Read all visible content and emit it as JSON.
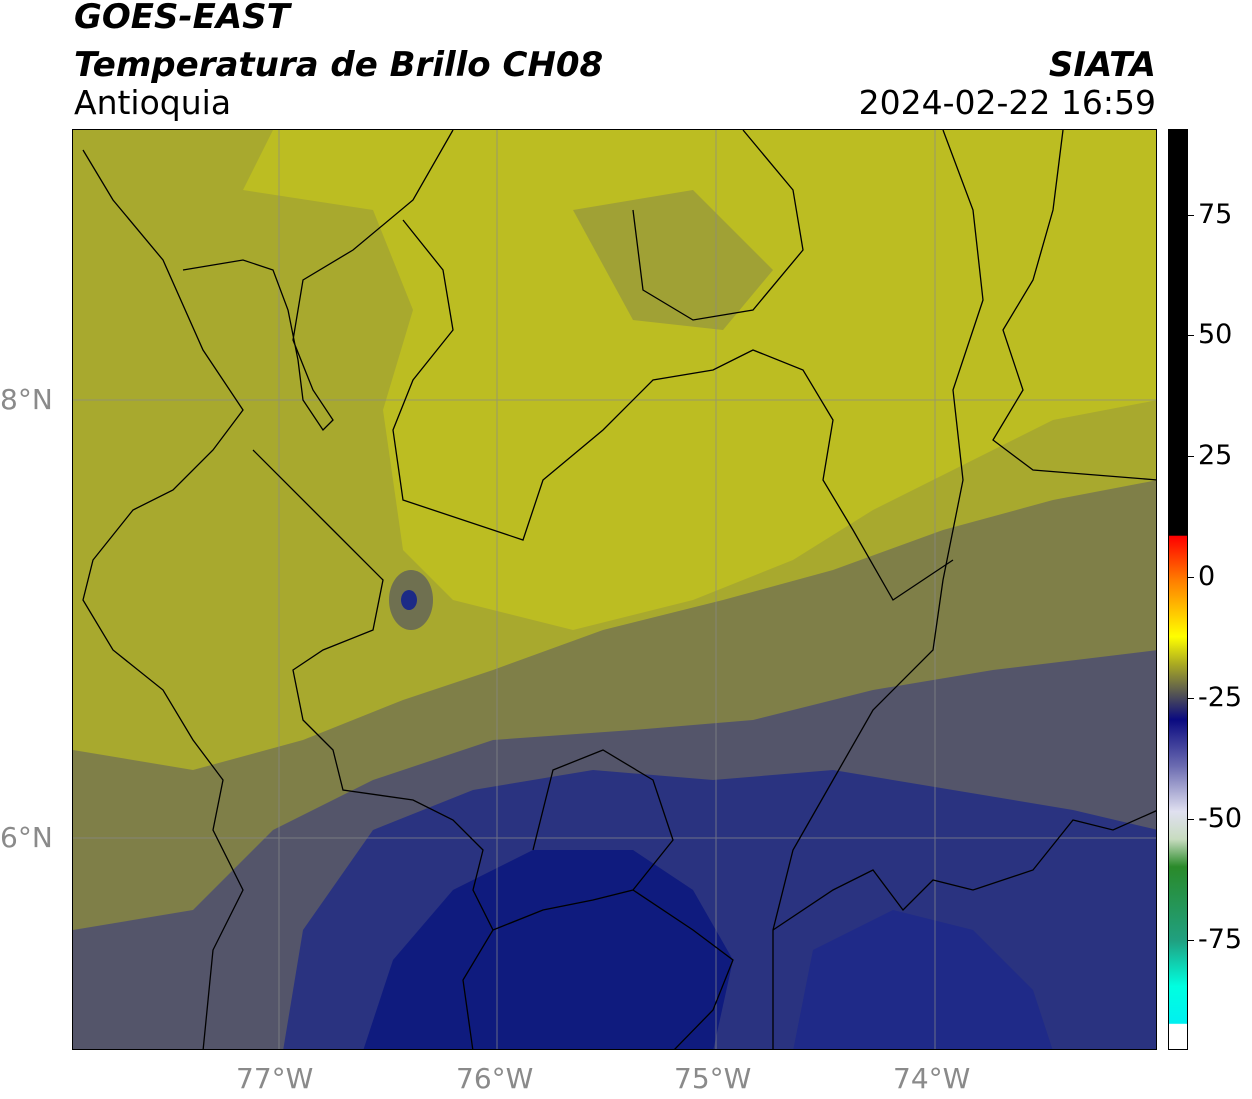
{
  "header": {
    "title": "GOES-EAST",
    "product": "Temperatura de Brillo CH08",
    "agency": "SIATA",
    "region": "Antioquia",
    "datetime": "2024-02-22 16:59"
  },
  "map": {
    "lat_labels": [
      "8°N",
      "6°N"
    ],
    "lon_labels": [
      "77°W",
      "76°W",
      "75°W",
      "74°W"
    ],
    "colors": {
      "warm_yellow": "#bcbd22",
      "olive": "#a7a833",
      "olive_gray": "#7a7a47",
      "slate": "#4b4c62",
      "deep_blue": "#1c2a86",
      "navy": "#0d1a7d",
      "boundary": "#000000",
      "grid": "#8a8a8a"
    }
  },
  "colorbar": {
    "tick_labels": [
      "75",
      "50",
      "25",
      "0",
      "-25",
      "-50",
      "-75"
    ],
    "tick_values": [
      75,
      50,
      25,
      0,
      -25,
      -50,
      -75
    ],
    "range": [
      -95,
      92
    ]
  }
}
